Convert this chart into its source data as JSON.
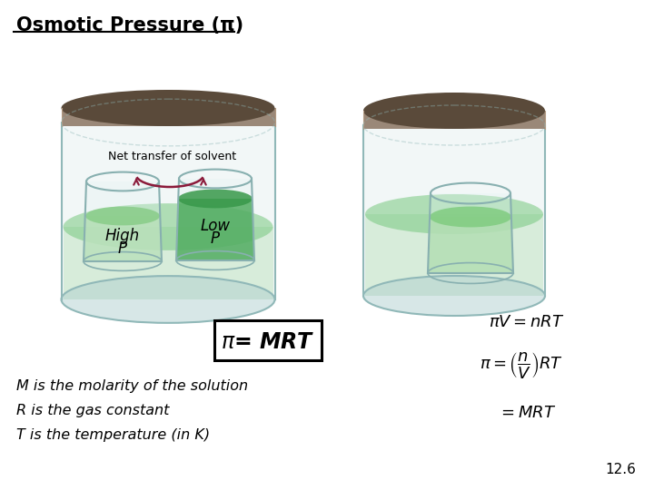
{
  "title": "Osmotic Pressure (π)",
  "background_color": "#ffffff",
  "jar_lid_dark": "#5a4a3a",
  "jar_lid_light": "#9a8878",
  "jar_outline": "#90b8b8",
  "solution_light": "#c8e8c8",
  "solution_dark": "#88cc88",
  "solution_dark2": "#40a050",
  "arrow_color": "#8b1a3a",
  "label_line1": "M is the molarity of the solution",
  "label_line2": "R is the gas constant",
  "label_line3": "T is the temperature (in K)",
  "page_num": "12.6",
  "net_transfer_text": "Net transfer of solvent",
  "high_p_line1": "High",
  "high_p_line2": "P",
  "low_p_line1": "Low",
  "low_p_line2": "P"
}
